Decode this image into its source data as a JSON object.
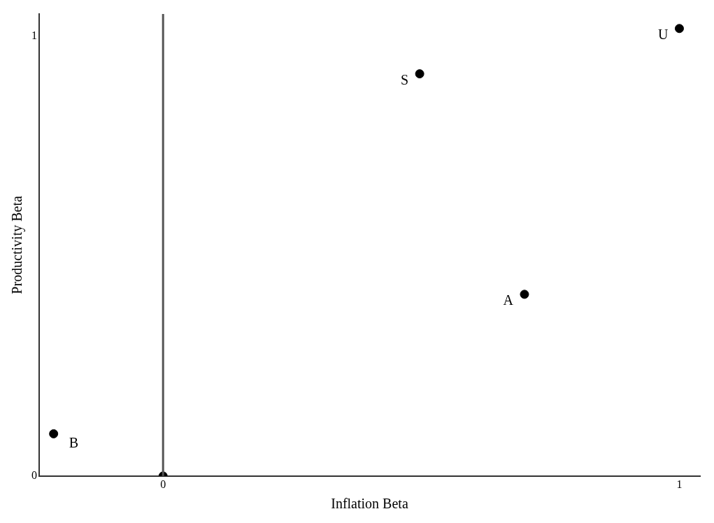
{
  "chart_data": {
    "type": "scatter",
    "xlabel": "Inflation Beta",
    "ylabel": "Productivity Beta",
    "x": [
      1.0,
      0.497,
      0.7,
      -0.212,
      0
    ],
    "values": [
      1.017,
      0.914,
      0.413,
      0.096,
      0
    ],
    "color": "#000000",
    "marker": "circle",
    "xlim": [
      -0.24,
      1.04
    ],
    "ylim": [
      0,
      1.05
    ],
    "xticks": [
      0,
      1
    ],
    "yticks": [
      0,
      1
    ],
    "grid": false,
    "legend": false,
    "ref_lines": [
      {
        "axis": "x",
        "value": 0,
        "color": "#555555"
      }
    ],
    "annotations": [
      {
        "text": "U",
        "x": 1.0,
        "y": 1.017
      },
      {
        "text": "S",
        "x": 0.497,
        "y": 0.914
      },
      {
        "text": "A",
        "x": 0.7,
        "y": 0.413
      },
      {
        "text": "B",
        "x": -0.212,
        "y": 0.096
      }
    ]
  }
}
